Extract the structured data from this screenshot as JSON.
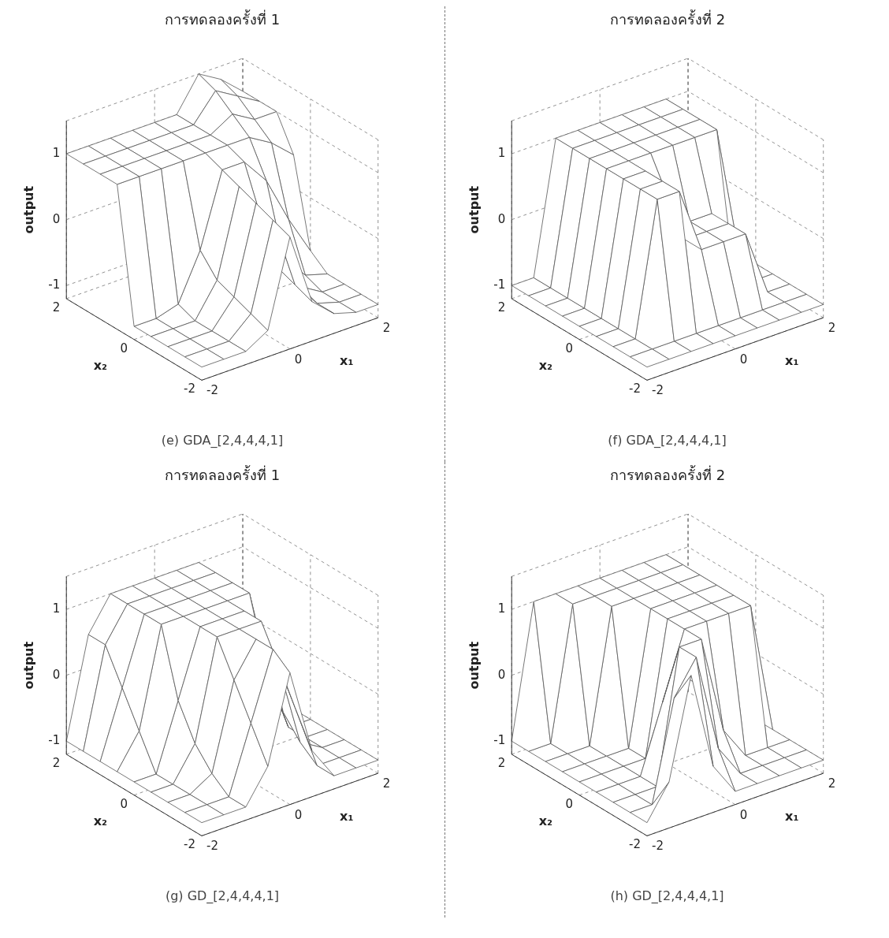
{
  "chart_data": [
    {
      "type": "surface",
      "title": "การทดลองครั้งที่ 1",
      "caption": "(e) GDA_[2,4,4,4,1]",
      "x_label": "x₁",
      "y_label": "x₂",
      "z_label": "output",
      "color": "#555555",
      "grid": true,
      "xlim": [
        -2,
        2
      ],
      "xticks": [
        -2,
        0,
        2
      ],
      "ylim": [
        -2,
        2
      ],
      "yticks": [
        -2,
        0,
        2
      ],
      "zlim": [
        -1.2,
        1.5
      ],
      "zticks": [
        -1,
        0,
        1
      ],
      "x": [
        -2,
        -1.5,
        -1,
        -0.5,
        0,
        0.5,
        1,
        1.5,
        2
      ],
      "y": [
        -2,
        -1.5,
        -1,
        -0.5,
        0,
        0.5,
        1,
        1.5,
        2
      ],
      "z": [
        [
          -1,
          -1,
          -1,
          -0.8,
          0.5,
          -0.6,
          -0.9,
          -1,
          -1
        ],
        [
          -1,
          -1,
          -1,
          -0.7,
          0.6,
          -0.5,
          -0.9,
          -1,
          -1
        ],
        [
          -1,
          -1,
          -1,
          -0.6,
          0.7,
          -0.4,
          -0.8,
          -1,
          -1
        ],
        [
          -1,
          -1,
          -1,
          -0.5,
          0.8,
          0.2,
          -0.5,
          -0.9,
          -1
        ],
        [
          -1,
          -1,
          -0.9,
          -0.2,
          0.9,
          0.9,
          0.5,
          -0.2,
          -0.8
        ],
        [
          1,
          1,
          1,
          1,
          1,
          1,
          1,
          0.8,
          0.5
        ],
        [
          1,
          1,
          1,
          1,
          1,
          1,
          1.2,
          1,
          1
        ],
        [
          1,
          1,
          1,
          1,
          1,
          1,
          1.4,
          1.2,
          1
        ],
        [
          1,
          1,
          1,
          1,
          1,
          1,
          1.5,
          1.3,
          1
        ]
      ]
    },
    {
      "type": "surface",
      "title": "การทดลองครั้งที่ 2",
      "caption": "(f) GDA_[2,4,4,4,1]",
      "x_label": "x₁",
      "y_label": "x₂",
      "z_label": "output",
      "color": "#555555",
      "grid": true,
      "xlim": [
        -2,
        2
      ],
      "xticks": [
        -2,
        0,
        2
      ],
      "ylim": [
        -2,
        2
      ],
      "yticks": [
        -2,
        0,
        2
      ],
      "zlim": [
        -1.2,
        1.5
      ],
      "zticks": [
        -1,
        0,
        1
      ],
      "x": [
        -2,
        -1.5,
        -1,
        -0.5,
        0,
        0.5,
        1,
        1.5,
        2
      ],
      "y": [
        -2,
        -1.5,
        -1,
        -0.5,
        0,
        0.5,
        1,
        1.5,
        2
      ],
      "z": [
        [
          -1,
          -1,
          -1,
          -1,
          -1,
          -1,
          -1,
          -1,
          -1
        ],
        [
          -1,
          -1,
          -1,
          -1,
          -1,
          -1,
          -1,
          -1,
          -1
        ],
        [
          -1,
          -1,
          1,
          1,
          0,
          0,
          0,
          -1,
          -1
        ],
        [
          -1,
          -1,
          1,
          1,
          0,
          0,
          0,
          -1,
          -1
        ],
        [
          -1,
          -1,
          1,
          1,
          0.5,
          0,
          0,
          -1,
          -1
        ],
        [
          -1,
          -1,
          1,
          1,
          1,
          1,
          1,
          1,
          -1
        ],
        [
          -1,
          -1,
          1,
          1,
          1,
          1,
          1,
          1,
          -1
        ],
        [
          -1,
          -1,
          1,
          1,
          1,
          1,
          1,
          1,
          -1
        ],
        [
          -1,
          -1,
          1,
          1,
          1,
          1,
          1,
          1,
          -1
        ]
      ]
    },
    {
      "type": "surface",
      "title": "การทดลองครั้งที่ 1",
      "caption": "(g) GD_[2,4,4,4,1]",
      "x_label": "x₁",
      "y_label": "x₂",
      "z_label": "output",
      "color": "#555555",
      "grid": true,
      "xlim": [
        -2,
        2
      ],
      "xticks": [
        -2,
        0,
        2
      ],
      "ylim": [
        -2,
        2
      ],
      "yticks": [
        -2,
        0,
        2
      ],
      "zlim": [
        -1.2,
        1.5
      ],
      "zticks": [
        -1,
        0,
        1
      ],
      "x": [
        -2,
        -1.5,
        -1,
        -0.5,
        0,
        0.5,
        1,
        1.5,
        2
      ],
      "y": [
        -2,
        -1.5,
        -1,
        -0.5,
        0,
        0.5,
        1,
        1.5,
        2
      ],
      "z": [
        [
          -1,
          -1,
          -1,
          -0.5,
          0.8,
          -0.5,
          -1,
          -1,
          -1
        ],
        [
          -1,
          -1,
          -1,
          0,
          1,
          0,
          -1,
          -1,
          -1
        ],
        [
          -1,
          -1,
          -0.8,
          0.5,
          1,
          0.5,
          -0.8,
          -1,
          -1
        ],
        [
          -1,
          -1,
          -0.5,
          1,
          1,
          1,
          -0.5,
          -1,
          -1
        ],
        [
          -1,
          -1,
          0,
          1,
          1,
          1,
          0,
          -1,
          -1
        ],
        [
          -1,
          -0.5,
          1,
          1,
          1,
          1,
          1,
          -0.5,
          -1
        ],
        [
          -1,
          0,
          1,
          1,
          1,
          1,
          1,
          0,
          -1
        ],
        [
          -1,
          0.5,
          1,
          1,
          1,
          1,
          1,
          0.5,
          -1
        ],
        [
          -1,
          0.5,
          1,
          1,
          1,
          1,
          1,
          0.5,
          -1
        ]
      ]
    },
    {
      "type": "surface",
      "title": "การทดลองครั้งที่ 2",
      "caption": "(h) GD_[2,4,4,4,1]",
      "x_label": "x₁",
      "y_label": "x₂",
      "z_label": "output",
      "color": "#555555",
      "grid": true,
      "xlim": [
        -2,
        2
      ],
      "xticks": [
        -2,
        0,
        2
      ],
      "ylim": [
        -2,
        2
      ],
      "yticks": [
        -2,
        0,
        2
      ],
      "zlim": [
        -1.2,
        1.5
      ],
      "zticks": [
        -1,
        0,
        1
      ],
      "x": [
        -2,
        -1.5,
        -1,
        -0.5,
        0,
        0.5,
        1,
        1.5,
        2
      ],
      "y": [
        -2,
        -1.5,
        -1,
        -0.5,
        0,
        0.5,
        1,
        1.5,
        2
      ],
      "z": [
        [
          -1,
          -0.5,
          1,
          -0.5,
          -1,
          -1,
          -1,
          -1,
          -1
        ],
        [
          -1,
          -1,
          0.5,
          1,
          -0.5,
          -1,
          -1,
          -1,
          -1
        ],
        [
          -1,
          -1,
          -1,
          1,
          1,
          -0.5,
          -1,
          -1,
          -1
        ],
        [
          -1,
          -1,
          -1,
          0,
          1,
          1,
          1,
          1,
          -1
        ],
        [
          -1,
          -1,
          -1,
          -1,
          1,
          1,
          1,
          1,
          -1
        ],
        [
          -1,
          -1,
          -1,
          -1,
          1,
          1,
          1,
          1,
          -1
        ],
        [
          -1,
          -1,
          -1,
          1,
          1,
          1,
          1,
          1,
          -1
        ],
        [
          -1,
          -1,
          1,
          1,
          1,
          1,
          1,
          1,
          -1
        ],
        [
          -1,
          1,
          1,
          1,
          1,
          1,
          1,
          1,
          -1
        ]
      ]
    }
  ]
}
